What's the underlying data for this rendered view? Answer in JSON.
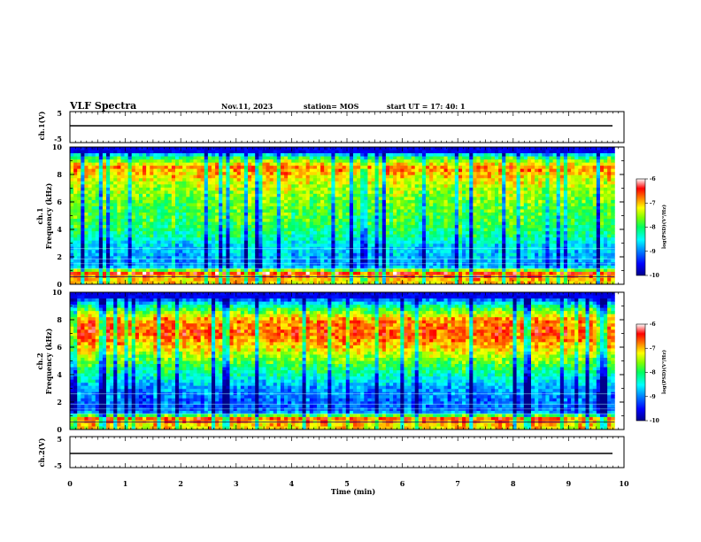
{
  "header": {
    "title": "VLF Spectra",
    "date": "Nov.11, 2023",
    "station": "station= MOS",
    "start": "start  UT =   17: 40: 1"
  },
  "chart_data": [
    {
      "type": "line",
      "name": "waveform",
      "ylabel": "ch.1(V)",
      "ylim": [
        -5,
        5
      ],
      "y_ticks": [
        "5",
        "-5"
      ],
      "xlim": [
        0,
        10
      ],
      "series": [
        {
          "values_description": "flat trace",
          "y": 0
        }
      ]
    },
    {
      "type": "heatmap",
      "name": "ch1-spectrogram",
      "ylabel": "ch.1\nFrequency (kHz)",
      "ylabel_lines": [
        "ch.1",
        "Frequency (kHz)"
      ],
      "ylim": [
        0,
        10
      ],
      "y_ticks": [
        "0",
        "2",
        "4",
        "6",
        "8",
        "10"
      ],
      "xlim": [
        0,
        10
      ],
      "x_end": 9.83,
      "band_profile": [
        {
          "f": 0.3,
          "v": -7.2
        },
        {
          "f": 0.8,
          "v": -6.6
        },
        {
          "f": 1.3,
          "v": -9.0
        },
        {
          "f": 2.0,
          "v": -8.9
        },
        {
          "f": 2.8,
          "v": -8.7
        },
        {
          "f": 3.5,
          "v": -8.3
        },
        {
          "f": 4.5,
          "v": -8.0
        },
        {
          "f": 5.5,
          "v": -7.9
        },
        {
          "f": 6.5,
          "v": -7.7
        },
        {
          "f": 7.5,
          "v": -7.4
        },
        {
          "f": 8.5,
          "v": -6.9
        },
        {
          "f": 9.2,
          "v": -8.0
        },
        {
          "f": 9.7,
          "v": -9.6
        }
      ],
      "colorbar": {
        "label": "log(PSD)(V²/Hz)",
        "range": [
          -10,
          -6
        ],
        "ticks": [
          "-6",
          "-7",
          "-8",
          "-9",
          "-10"
        ]
      }
    },
    {
      "type": "heatmap",
      "name": "ch2-spectrogram",
      "ylabel": "ch.2\nFrequency (kHz)",
      "ylabel_lines": [
        "ch.2",
        "Frequency (kHz)"
      ],
      "ylim": [
        0,
        10
      ],
      "y_ticks": [
        "0",
        "2",
        "4",
        "6",
        "8",
        "10"
      ],
      "xlim": [
        0,
        10
      ],
      "x_end": 9.83,
      "band_profile": [
        {
          "f": 0.3,
          "v": -7.2
        },
        {
          "f": 0.8,
          "v": -6.8
        },
        {
          "f": 1.3,
          "v": -9.2
        },
        {
          "f": 2.0,
          "v": -9.2
        },
        {
          "f": 3.0,
          "v": -9.0
        },
        {
          "f": 4.0,
          "v": -8.4
        },
        {
          "f": 5.0,
          "v": -7.8
        },
        {
          "f": 6.0,
          "v": -7.2
        },
        {
          "f": 7.0,
          "v": -6.7
        },
        {
          "f": 8.0,
          "v": -7.0
        },
        {
          "f": 9.0,
          "v": -8.3
        },
        {
          "f": 9.7,
          "v": -9.7
        }
      ],
      "colorbar": {
        "label": "log(PSD)(V²/Hz)",
        "range": [
          -10,
          -6
        ],
        "ticks": [
          "-6",
          "-7",
          "-8",
          "-9",
          "-10"
        ]
      }
    },
    {
      "type": "line",
      "name": "waveform",
      "ylabel": "ch.2(V)",
      "ylim": [
        -5,
        5
      ],
      "y_ticks": [
        "5",
        "-5"
      ],
      "xlim": [
        0,
        10
      ],
      "series": [
        {
          "values_description": "flat trace",
          "y": 0
        }
      ]
    }
  ],
  "xaxis": {
    "label": "Time (min)",
    "ticks": [
      "0",
      "1",
      "2",
      "3",
      "4",
      "5",
      "6",
      "7",
      "8",
      "9",
      "10"
    ]
  },
  "colors": {
    "colormap": [
      "#00008b",
      "#0000ff",
      "#0080ff",
      "#00ffff",
      "#00ff80",
      "#80ff00",
      "#ffff00",
      "#ff8000",
      "#ff0000",
      "#ffffff"
    ]
  }
}
